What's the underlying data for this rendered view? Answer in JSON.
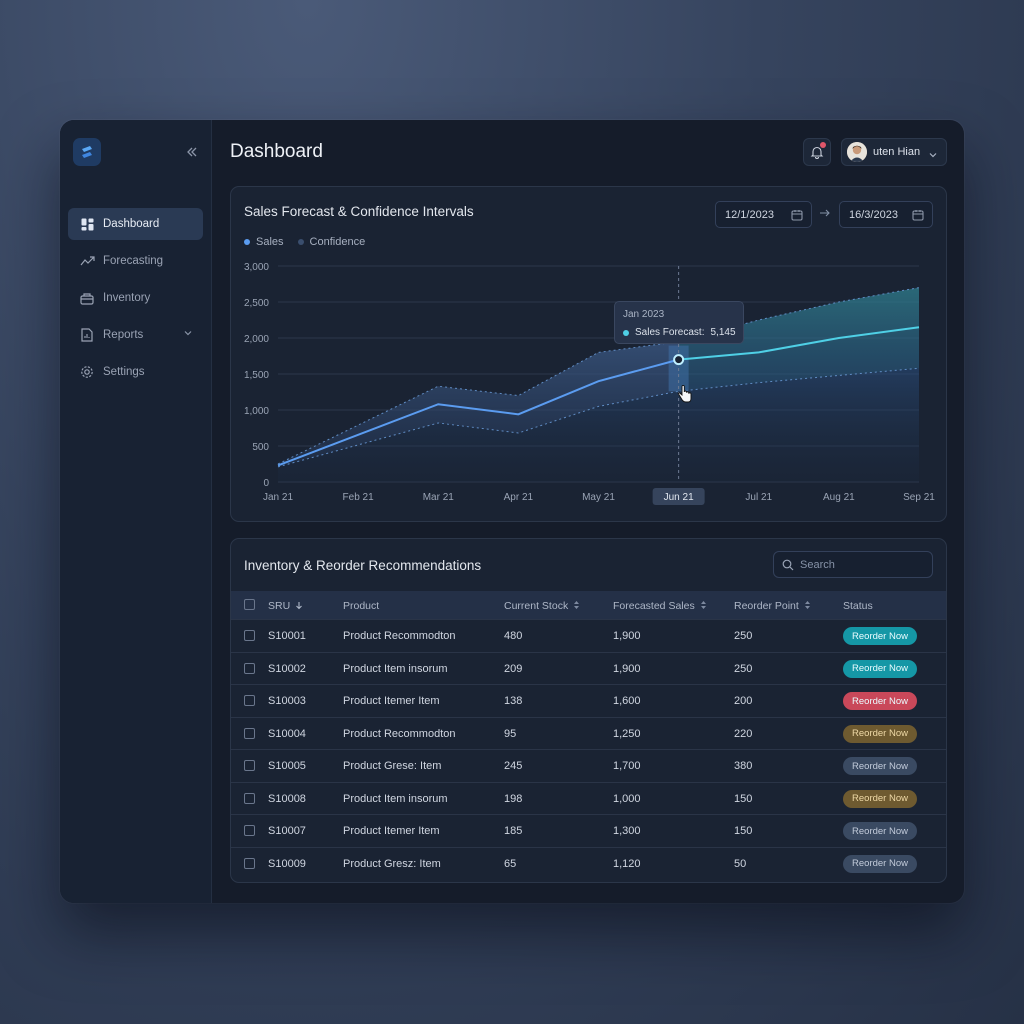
{
  "app": {
    "collapse_icon": "double-chevron-left-icon",
    "page_title": "Dashboard",
    "user_name": "uten Hian"
  },
  "sidebar": {
    "items": [
      {
        "label": "Dashboard",
        "icon": "grid-icon",
        "active": true
      },
      {
        "label": "Forecasting",
        "icon": "trend-line-icon"
      },
      {
        "label": "Inventory",
        "icon": "box-icon"
      },
      {
        "label": "Reports",
        "icon": "document-icon",
        "has_submenu": true
      },
      {
        "label": "Settings",
        "icon": "gear-icon"
      }
    ]
  },
  "chart_card": {
    "title": "Sales Forecast & Confidence Intervals",
    "date_from": "12/1/2023",
    "date_to": "16/3/2023",
    "legend": [
      {
        "label": "Sales",
        "color": "#5b9cf0"
      },
      {
        "label": "Confidence",
        "color": "#3a4e6e"
      }
    ],
    "tooltip": {
      "title": "Jan 2023",
      "series_label": "Sales Forecast:",
      "series_value": "5,145"
    }
  },
  "chart_data": {
    "type": "line",
    "title": "Sales Forecast & Confidence Intervals",
    "categories": [
      "Jan 21",
      "Feb 21",
      "Mar 21",
      "Apr 21",
      "May 21",
      "Jun 21",
      "Jul 21",
      "Aug 21",
      "Sep 21"
    ],
    "ylim": [
      0,
      3000
    ],
    "yticks": [
      0,
      500,
      1000,
      1500,
      2000,
      2500,
      3000
    ],
    "ytick_labels": [
      "0",
      "500",
      "1,000",
      "1,500",
      "2,000",
      "2,500",
      "3,000"
    ],
    "highlighted_category": "Jun 21",
    "grid": true,
    "legend_position": "top-left",
    "series": [
      {
        "name": "Sales",
        "x": [
          0,
          2,
          3,
          4,
          5,
          6,
          7,
          8
        ],
        "values": [
          230,
          1080,
          940,
          1400,
          1700,
          1800,
          2000,
          2150
        ],
        "color": "#5b9cf0",
        "forecast_color": "#4fd0e6",
        "forecast_from_index": 4
      },
      {
        "name": "Confidence",
        "x": [
          0,
          2,
          3,
          4,
          5,
          6,
          7,
          8
        ],
        "upper": [
          250,
          1330,
          1200,
          1800,
          1950,
          2250,
          2500,
          2700
        ],
        "lower": [
          210,
          820,
          680,
          1050,
          1260,
          1380,
          1480,
          1580
        ],
        "color": "#3a4e6e"
      }
    ]
  },
  "table": {
    "title": "Inventory & Reorder Recommendations",
    "search_placeholder": "Search",
    "columns": [
      "SRU",
      "Product",
      "Current Stock",
      "Forecasted Sales",
      "Reorder Point",
      "Status"
    ],
    "rows": [
      {
        "sku": "S10001",
        "product": "Product Recommodton",
        "stock": "480",
        "forecast": "1,900",
        "reorder": "250",
        "status": "Reorder Now",
        "status_color": "#1a9fae",
        "status_bg": "#1597a6"
      },
      {
        "sku": "S10002",
        "product": "Product Item insorum",
        "stock": "209",
        "forecast": "1,900",
        "reorder": "250",
        "status": "Reorder Now",
        "status_color": "#1a9fae",
        "status_bg": "#1597a6"
      },
      {
        "sku": "S10003",
        "product": "Product Itemer Item",
        "stock": "138",
        "forecast": "1,600",
        "reorder": "200",
        "status": "Reorder Now",
        "status_color": "#d94c5c",
        "status_bg": "#c9485a"
      },
      {
        "sku": "S10004",
        "product": "Product Recommodton",
        "stock": "95",
        "forecast": "1,250",
        "reorder": "220",
        "status": "Reorder Now",
        "status_color": "#8a6a2e",
        "status_bg": "#6e5a30"
      },
      {
        "sku": "S10005",
        "product": "Product Grese: Item",
        "stock": "245",
        "forecast": "1,700",
        "reorder": "380",
        "status": "Reorder Now",
        "status_color": "#3c4a60",
        "status_bg": "#3a4a62"
      },
      {
        "sku": "S10008",
        "product": "Product Item insorum",
        "stock": "198",
        "forecast": "1,000",
        "reorder": "150",
        "status": "Reorder Now",
        "status_color": "#8a6a2e",
        "status_bg": "#6e5a30"
      },
      {
        "sku": "S10007",
        "product": "Product Itemer Item",
        "stock": "185",
        "forecast": "1,300",
        "reorder": "150",
        "status": "Reorder Now",
        "status_color": "#3c4a60",
        "status_bg": "#3a4a62"
      },
      {
        "sku": "S10009",
        "product": "Product Gresz: Item",
        "stock": "65",
        "forecast": "1,120",
        "reorder": "50",
        "status": "Reorder Now",
        "status_color": "#3c4a60",
        "status_bg": "#3a4a62"
      }
    ]
  }
}
